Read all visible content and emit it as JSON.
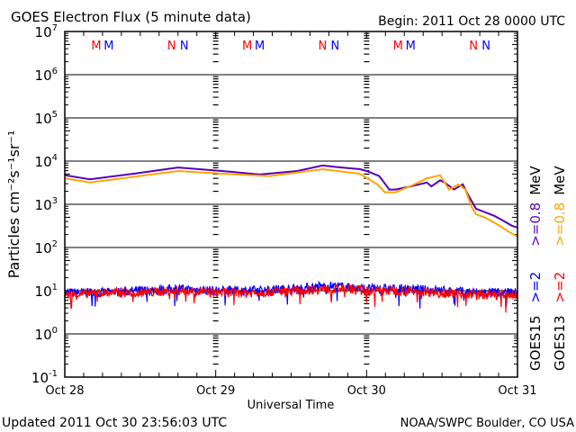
{
  "chart_data": {
    "type": "line",
    "title": "GOES Electron Flux (5 minute data)",
    "begin_label": "Begin: 2011 Oct 28 0000 UTC",
    "xlabel": "Universal Time",
    "ylabel": "Particles cm⁻²s⁻¹sr⁻¹",
    "yscale": "log",
    "ylim": [
      0.1,
      10000000
    ],
    "xlim_hours": [
      0,
      72
    ],
    "x_ticks": [
      {
        "hour": 0,
        "label": "Oct 28"
      },
      {
        "hour": 24,
        "label": "Oct 29"
      },
      {
        "hour": 48,
        "label": "Oct 30"
      },
      {
        "hour": 72,
        "label": "Oct 31"
      }
    ],
    "y_ticks": [
      {
        "exp": 7,
        "base": "10",
        "sup": "7"
      },
      {
        "exp": 6,
        "base": "10",
        "sup": "6"
      },
      {
        "exp": 5,
        "base": "10",
        "sup": "5"
      },
      {
        "exp": 4,
        "base": "10",
        "sup": "4"
      },
      {
        "exp": 3,
        "base": "10",
        "sup": "3"
      },
      {
        "exp": 2,
        "base": "10",
        "sup": "2"
      },
      {
        "exp": 1,
        "base": "10",
        "sup": "1"
      },
      {
        "exp": 0,
        "base": "10",
        "sup": "0"
      },
      {
        "exp": -1,
        "base": "10",
        "sup": "-1"
      }
    ],
    "threshold": {
      "value": 1000,
      "style": "dashed"
    },
    "markers": [
      {
        "hour": 5,
        "label": "M",
        "color": "#ff0000"
      },
      {
        "hour": 7,
        "label": "M",
        "color": "#0000ff"
      },
      {
        "hour": 17,
        "label": "N",
        "color": "#ff0000"
      },
      {
        "hour": 19,
        "label": "N",
        "color": "#0000ff"
      },
      {
        "hour": 29,
        "label": "M",
        "color": "#ff0000"
      },
      {
        "hour": 31,
        "label": "M",
        "color": "#0000ff"
      },
      {
        "hour": 41,
        "label": "N",
        "color": "#ff0000"
      },
      {
        "hour": 43,
        "label": "N",
        "color": "#0000ff"
      },
      {
        "hour": 53,
        "label": "M",
        "color": "#ff0000"
      },
      {
        "hour": 55,
        "label": "M",
        "color": "#0000ff"
      },
      {
        "hour": 65,
        "label": "N",
        "color": "#ff0000"
      },
      {
        "hour": 67,
        "label": "N",
        "color": "#0000ff"
      }
    ],
    "series": [
      {
        "name": "GOES15 >=0.8 MeV",
        "color": "#5a00b4",
        "noisy": false,
        "hours": [
          0,
          4,
          11,
          18,
          25,
          31,
          37,
          41,
          44,
          47,
          48,
          50,
          51,
          51.6,
          52.6,
          55,
          57.6,
          58.3,
          59.7,
          60.4,
          61.9,
          63.3,
          64,
          65.4,
          66.9,
          68.3,
          69.7,
          71.1,
          72
        ],
        "values": [
          4700,
          3800,
          5100,
          7100,
          5900,
          4900,
          5900,
          7900,
          7100,
          6500,
          5900,
          4500,
          2900,
          2200,
          2200,
          2600,
          3200,
          2600,
          3600,
          3200,
          2200,
          2900,
          1800,
          790,
          650,
          540,
          420,
          320,
          290
        ]
      },
      {
        "name": "GOES13 >=0.8 MeV",
        "color": "#ffa500",
        "noisy": false,
        "hours": [
          0,
          4,
          18,
          25,
          32.6,
          41,
          46.9,
          49.7,
          50.9,
          52.6,
          55.4,
          57.6,
          59.7,
          61.1,
          62.6,
          63.7,
          64.7,
          65.4,
          66.9,
          69,
          70.4,
          72
        ],
        "values": [
          4000,
          3200,
          5900,
          5100,
          4500,
          6500,
          5100,
          2900,
          1900,
          1900,
          2800,
          4000,
          4700,
          2200,
          2900,
          2200,
          870,
          590,
          490,
          330,
          240,
          180
        ]
      },
      {
        "name": "GOES15 >=2 MeV",
        "color": "#0000ff",
        "noisy": true,
        "hours": [
          0,
          6,
          12,
          18,
          24,
          30,
          36,
          42,
          45,
          48,
          54,
          60,
          66,
          72
        ],
        "values": [
          9,
          9,
          10,
          11,
          10,
          10,
          11,
          13,
          12,
          11,
          11,
          10,
          9,
          9
        ]
      },
      {
        "name": "GOES13 >=2 MeV",
        "color": "#ff0000",
        "noisy": true,
        "hours": [
          0,
          6,
          12,
          18,
          24,
          30,
          36,
          42,
          45,
          48,
          54,
          60,
          66,
          72
        ],
        "values": [
          8,
          9,
          9,
          10,
          9,
          9,
          10,
          11,
          11,
          10,
          10,
          9,
          8,
          8
        ]
      }
    ],
    "legend": {
      "placement": "right",
      "columns": [
        {
          "satellite": "GOES15",
          "low": ">=2",
          "low_color": "#0000ff",
          "high": ">=0.8",
          "high_color": "#5a00b4",
          "unit": "MeV"
        },
        {
          "satellite": "GOES13",
          "low": ">=2",
          "low_color": "#ff0000",
          "high": ">=0.8",
          "high_color": "#ffa500",
          "unit": "MeV"
        }
      ]
    }
  },
  "footer": {
    "updated": "Updated 2011 Oct 30 23:56:03 UTC",
    "source": "NOAA/SWPC Boulder, CO USA"
  }
}
